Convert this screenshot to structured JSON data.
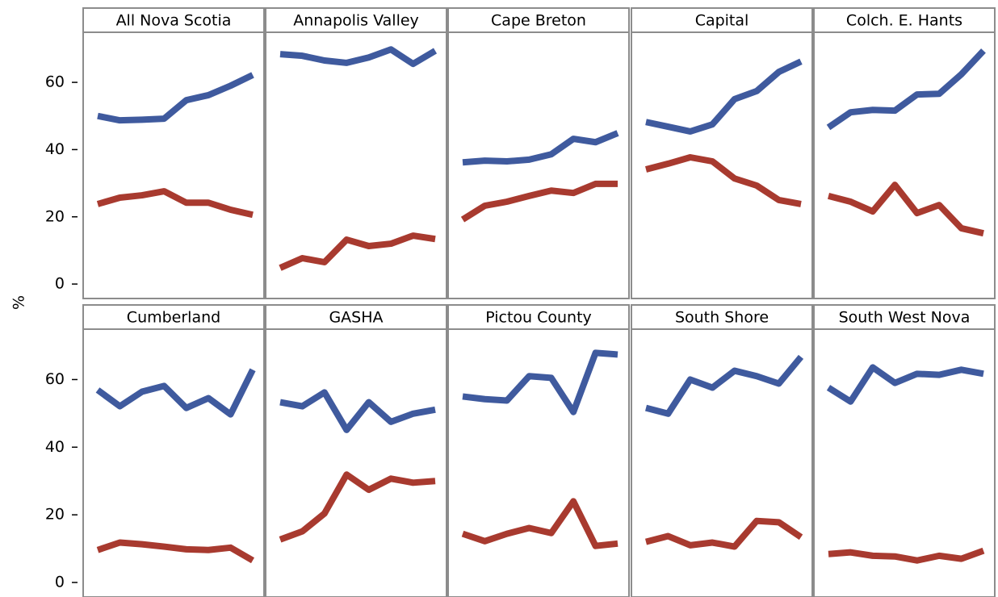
{
  "chart_data": [
    {
      "type": "line",
      "title": "All Nova Scotia",
      "y_label": "%",
      "ylim": [
        -4.3,
        74.9
      ],
      "yticks": [
        0,
        20,
        40,
        60
      ],
      "series": [
        {
          "color": "#3f5a9e",
          "values": [
            50,
            48.7,
            48.9,
            49.2,
            54.7,
            56.2,
            59,
            62.2
          ]
        },
        {
          "color": "#a83a2f",
          "values": [
            23.8,
            25.7,
            26.4,
            27.6,
            24.2,
            24.2,
            22.1,
            20.6
          ]
        }
      ]
    },
    {
      "type": "line",
      "title": "Annapolis Valley",
      "ylim": [
        -4.3,
        74.9
      ],
      "series": [
        {
          "color": "#3f5a9e",
          "values": [
            68.4,
            67.9,
            66.5,
            65.8,
            67.4,
            69.8,
            65.5,
            69.4
          ]
        },
        {
          "color": "#a83a2f",
          "values": [
            4.8,
            7.7,
            6.5,
            13.2,
            11.3,
            12,
            14.4,
            13.4
          ]
        }
      ]
    },
    {
      "type": "line",
      "title": "Cape Breton",
      "ylim": [
        -4.3,
        74.9
      ],
      "series": [
        {
          "color": "#3f5a9e",
          "values": [
            36.2,
            36.7,
            36.5,
            37,
            38.6,
            43.2,
            42.2,
            44.9
          ]
        },
        {
          "color": "#a83a2f",
          "values": [
            19.2,
            23.3,
            24.5,
            26.2,
            27.8,
            27.1,
            29.8,
            29.8
          ]
        }
      ]
    },
    {
      "type": "line",
      "title": "Capital",
      "ylim": [
        -4.3,
        74.9
      ],
      "series": [
        {
          "color": "#3f5a9e",
          "values": [
            48.2,
            46.8,
            45.4,
            47.5,
            55,
            57.4,
            63.1,
            66.2
          ]
        },
        {
          "color": "#a83a2f",
          "values": [
            34.1,
            35.8,
            37.7,
            36.5,
            31.4,
            29.3,
            25,
            23.8
          ]
        }
      ]
    },
    {
      "type": "line",
      "title": "Colch. E. Hants",
      "ylim": [
        -4.3,
        74.9
      ],
      "series": [
        {
          "color": "#3f5a9e",
          "values": [
            46.6,
            51.1,
            51.8,
            51.6,
            56.4,
            56.6,
            62.4,
            69.4
          ]
        },
        {
          "color": "#a83a2f",
          "values": [
            26.2,
            24.5,
            21.6,
            29.5,
            21.1,
            23.5,
            16.6,
            15.1
          ]
        }
      ]
    },
    {
      "type": "line",
      "title": "Cumberland",
      "ylim": [
        -4.3,
        74.9
      ],
      "yticks": [
        0,
        20,
        40,
        60
      ],
      "series": [
        {
          "color": "#3f5a9e",
          "values": [
            56.9,
            52.1,
            56.4,
            58.1,
            51.6,
            54.5,
            49.7,
            62.9
          ]
        },
        {
          "color": "#a83a2f",
          "values": [
            9.6,
            11.8,
            11.3,
            10.6,
            9.8,
            9.6,
            10.3,
            6.5
          ]
        }
      ]
    },
    {
      "type": "line",
      "title": "GASHA",
      "ylim": [
        -4.3,
        74.9
      ],
      "series": [
        {
          "color": "#3f5a9e",
          "values": [
            53.3,
            52.1,
            56.2,
            45.1,
            53.3,
            47.5,
            49.9,
            51.1
          ]
        },
        {
          "color": "#a83a2f",
          "values": [
            12.7,
            15.1,
            20.4,
            31.9,
            27.4,
            30.7,
            29.5,
            30
          ]
        }
      ]
    },
    {
      "type": "line",
      "title": "Pictou County",
      "ylim": [
        -4.3,
        74.9
      ],
      "series": [
        {
          "color": "#3f5a9e",
          "values": [
            55,
            54.2,
            53.8,
            61,
            60.5,
            50.4,
            67.9,
            67.4
          ]
        },
        {
          "color": "#a83a2f",
          "values": [
            14.4,
            12.2,
            14.4,
            16.1,
            14.6,
            24,
            10.8,
            11.5
          ]
        }
      ]
    },
    {
      "type": "line",
      "title": "South Shore",
      "ylim": [
        -4.3,
        74.9
      ],
      "series": [
        {
          "color": "#3f5a9e",
          "values": [
            51.6,
            49.9,
            60,
            57.6,
            62.6,
            61,
            58.8,
            66.7
          ]
        },
        {
          "color": "#a83a2f",
          "values": [
            12,
            13.7,
            11,
            11.8,
            10.6,
            18.2,
            17.8,
            13.4
          ]
        }
      ]
    },
    {
      "type": "line",
      "title": "South West Nova",
      "ylim": [
        -4.3,
        74.9
      ],
      "series": [
        {
          "color": "#3f5a9e",
          "values": [
            57.6,
            53.5,
            63.6,
            59,
            61.7,
            61.4,
            62.9,
            61.7
          ]
        },
        {
          "color": "#a83a2f",
          "values": [
            8.4,
            8.9,
            7.9,
            7.7,
            6.5,
            7.9,
            7,
            9.4
          ]
        }
      ]
    }
  ]
}
